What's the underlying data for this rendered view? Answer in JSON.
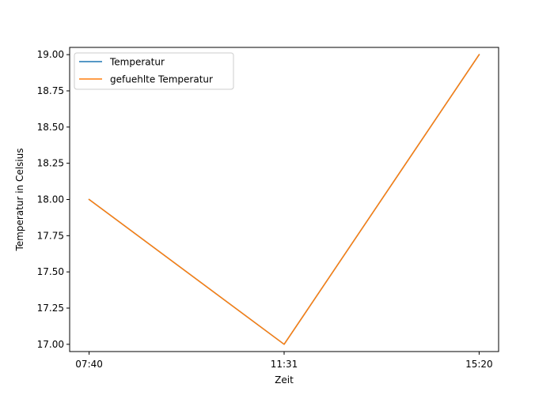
{
  "chart_data": {
    "type": "line",
    "title": "",
    "xlabel": "Zeit",
    "ylabel": "Temperatur in Celsius",
    "categories": [
      "07:40",
      "11:31",
      "15:20"
    ],
    "ylim": [
      16.95,
      19.05
    ],
    "yticks": [
      "17.00",
      "17.25",
      "17.50",
      "17.75",
      "18.00",
      "18.25",
      "18.50",
      "18.75",
      "19.00"
    ],
    "grid": false,
    "legend_position": "upper-left",
    "series": [
      {
        "name": "Temperatur",
        "values": [
          18.0,
          17.0,
          19.0
        ],
        "color": "#1f77b4"
      },
      {
        "name": "gefuehlte Temperatur",
        "values": [
          18.0,
          17.0,
          19.0
        ],
        "color": "#ff7f0e"
      }
    ]
  }
}
